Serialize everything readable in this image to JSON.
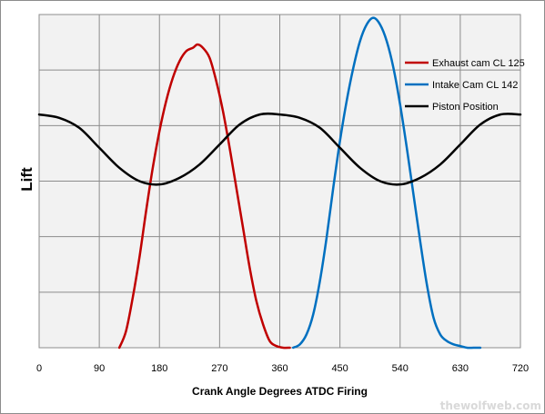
{
  "chart_data": {
    "type": "line",
    "title": "",
    "xlabel": "Crank Angle Degrees ATDC Firing",
    "ylabel": "Lift",
    "xlim": [
      0,
      720
    ],
    "ylim": [
      0,
      1
    ],
    "x_ticks": [
      "0",
      "90",
      "180",
      "270",
      "360",
      "450",
      "540",
      "630",
      "720"
    ],
    "grid": true,
    "legend_position": "top-right",
    "colors": {
      "plot_background": "#f2f2f2",
      "grid": "#8c8c8c",
      "exhaust": "#c00000",
      "intake": "#0070c0",
      "piston": "#000000"
    },
    "series": [
      {
        "name": "Exhaust cam CL 125",
        "color": "#c00000",
        "x": [
          120,
          130,
          140,
          150,
          160,
          170,
          180,
          190,
          200,
          210,
          220,
          230,
          237,
          245,
          255,
          265,
          275,
          285,
          295,
          305,
          315,
          325,
          335,
          345,
          355,
          365,
          375
        ],
        "y": [
          0.0,
          0.05,
          0.15,
          0.27,
          0.41,
          0.54,
          0.65,
          0.74,
          0.81,
          0.86,
          0.89,
          0.9,
          0.91,
          0.9,
          0.87,
          0.8,
          0.71,
          0.6,
          0.48,
          0.36,
          0.24,
          0.14,
          0.07,
          0.02,
          0.005,
          0.0,
          0.0
        ]
      },
      {
        "name": "Intake Cam CL 142",
        "color": "#0070c0",
        "x": [
          380,
          390,
          400,
          410,
          420,
          430,
          440,
          450,
          460,
          470,
          480,
          490,
          500,
          510,
          520,
          530,
          540,
          550,
          560,
          570,
          580,
          590,
          600,
          610,
          620,
          630,
          640,
          650,
          660
        ],
        "y": [
          0.0,
          0.01,
          0.04,
          0.1,
          0.2,
          0.33,
          0.48,
          0.62,
          0.74,
          0.84,
          0.92,
          0.97,
          0.99,
          0.97,
          0.92,
          0.84,
          0.73,
          0.6,
          0.46,
          0.32,
          0.19,
          0.09,
          0.04,
          0.02,
          0.01,
          0.005,
          0.0,
          0.0,
          0.0
        ]
      },
      {
        "name": "Piston Position",
        "color": "#000000",
        "x": [
          0,
          30,
          60,
          90,
          120,
          150,
          180,
          210,
          240,
          270,
          300,
          330,
          360,
          390,
          420,
          450,
          480,
          510,
          540,
          570,
          600,
          630,
          660,
          690,
          720
        ],
        "y": [
          0.7,
          0.69,
          0.66,
          0.6,
          0.54,
          0.5,
          0.49,
          0.51,
          0.55,
          0.61,
          0.67,
          0.7,
          0.7,
          0.69,
          0.66,
          0.6,
          0.54,
          0.5,
          0.49,
          0.51,
          0.55,
          0.61,
          0.67,
          0.7,
          0.7
        ]
      }
    ]
  },
  "watermark": "thewolfweb.com"
}
